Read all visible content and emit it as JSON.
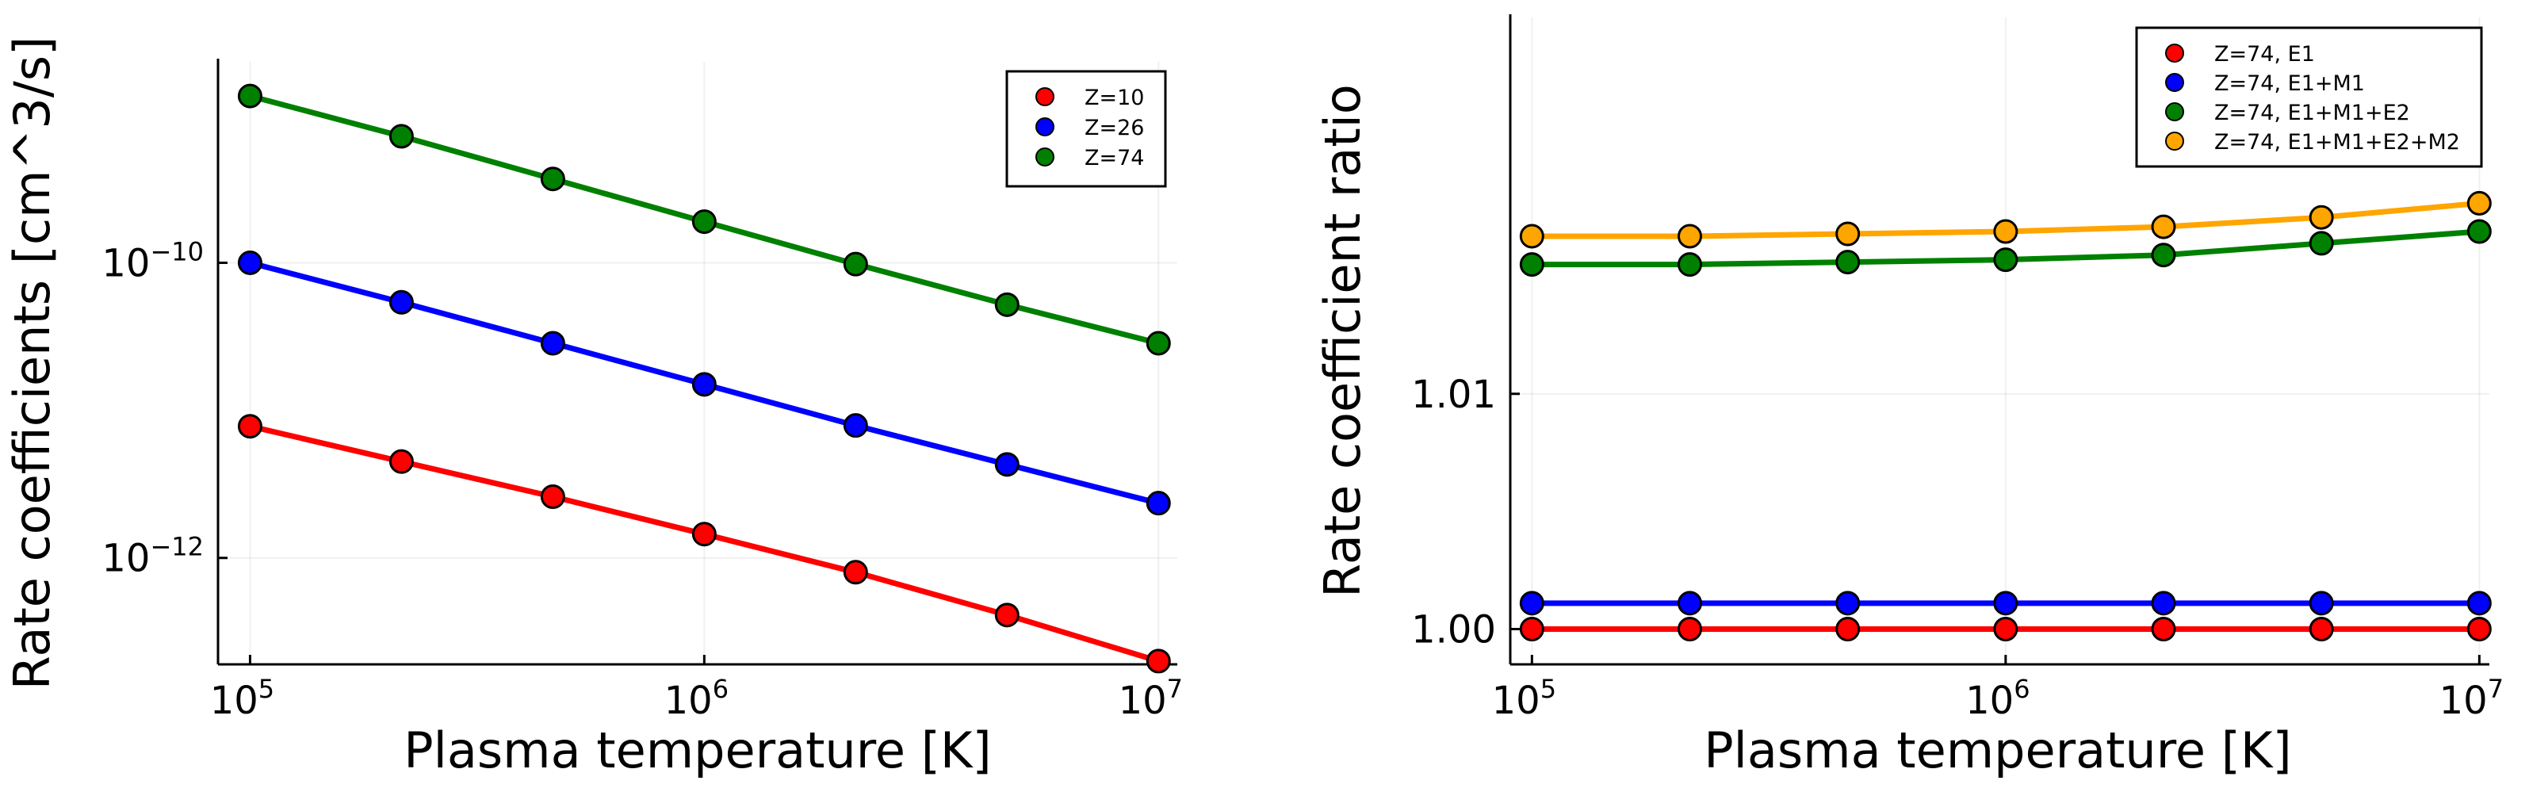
{
  "chart_data": [
    {
      "type": "line",
      "xscale": "log",
      "yscale": "log",
      "xlabel": "Plasma temperature [K]",
      "ylabel": "Rate coefficients [cm^3/s]",
      "xlim": [
        85000,
        11000000
      ],
      "ylim": [
        1.9e-13,
        2.3e-09
      ],
      "xticks": [
        {
          "base": "10",
          "exp": "5",
          "value": 100000
        },
        {
          "base": "10",
          "exp": "6",
          "value": 1000000
        },
        {
          "base": "10",
          "exp": "7",
          "value": 10000000
        }
      ],
      "yticks": [
        {
          "base": "10",
          "exp": "−12",
          "value": 1e-12
        },
        {
          "base": "10",
          "exp": "−10",
          "value": 1e-10
        }
      ],
      "legend": "top-right",
      "x": [
        100000,
        215443,
        464159,
        1000000,
        2154435,
        4641589,
        10000000
      ],
      "series": [
        {
          "name": "Z=10",
          "color": "#ff0000",
          "values": [
            7.8e-12,
            4.5e-12,
            2.6e-12,
            1.45e-12,
            8e-13,
            4.1e-13,
            2e-13
          ]
        },
        {
          "name": "Z=26",
          "color": "#0000ff",
          "values": [
            1e-10,
            5.4e-11,
            2.85e-11,
            1.5e-11,
            7.9e-12,
            4.3e-12,
            2.35e-12
          ]
        },
        {
          "name": "Z=74",
          "color": "#008000",
          "values": [
            1.35e-09,
            7.2e-10,
            3.7e-10,
            1.9e-10,
            9.8e-11,
            5.2e-11,
            2.85e-11
          ]
        }
      ]
    },
    {
      "type": "line",
      "xscale": "log",
      "yscale": "linear",
      "xlabel": "Plasma temperature [K]",
      "ylabel": "Rate coefficient ratio",
      "xlim": [
        90000,
        10500000
      ],
      "ylim": [
        0.9985,
        1.026
      ],
      "xticks": [
        {
          "base": "10",
          "exp": "5",
          "value": 100000
        },
        {
          "base": "10",
          "exp": "6",
          "value": 1000000
        },
        {
          "base": "10",
          "exp": "7",
          "value": 10000000
        }
      ],
      "yticks": [
        {
          "label": "1.00",
          "value": 1.0
        },
        {
          "label": "1.01",
          "value": 1.01
        }
      ],
      "legend": "top-right",
      "x": [
        100000,
        215443,
        464159,
        1000000,
        2154435,
        4641589,
        10000000
      ],
      "series": [
        {
          "name": "Z=74, E1",
          "color": "#ff0000",
          "values": [
            1.0,
            1.0,
            1.0,
            1.0,
            1.0,
            1.0,
            1.0
          ]
        },
        {
          "name": "Z=74, E1+M1",
          "color": "#0000ff",
          "values": [
            1.0011,
            1.0011,
            1.0011,
            1.0011,
            1.0011,
            1.0011,
            1.0011
          ]
        },
        {
          "name": "Z=74, E1+M1+E2",
          "color": "#008000",
          "values": [
            1.0155,
            1.0155,
            1.0156,
            1.0157,
            1.0159,
            1.0164,
            1.0169
          ]
        },
        {
          "name": "Z=74, E1+M1+E2+M2",
          "color": "#ffa500",
          "values": [
            1.0167,
            1.0167,
            1.0168,
            1.0169,
            1.0171,
            1.0175,
            1.0181
          ]
        }
      ]
    }
  ]
}
